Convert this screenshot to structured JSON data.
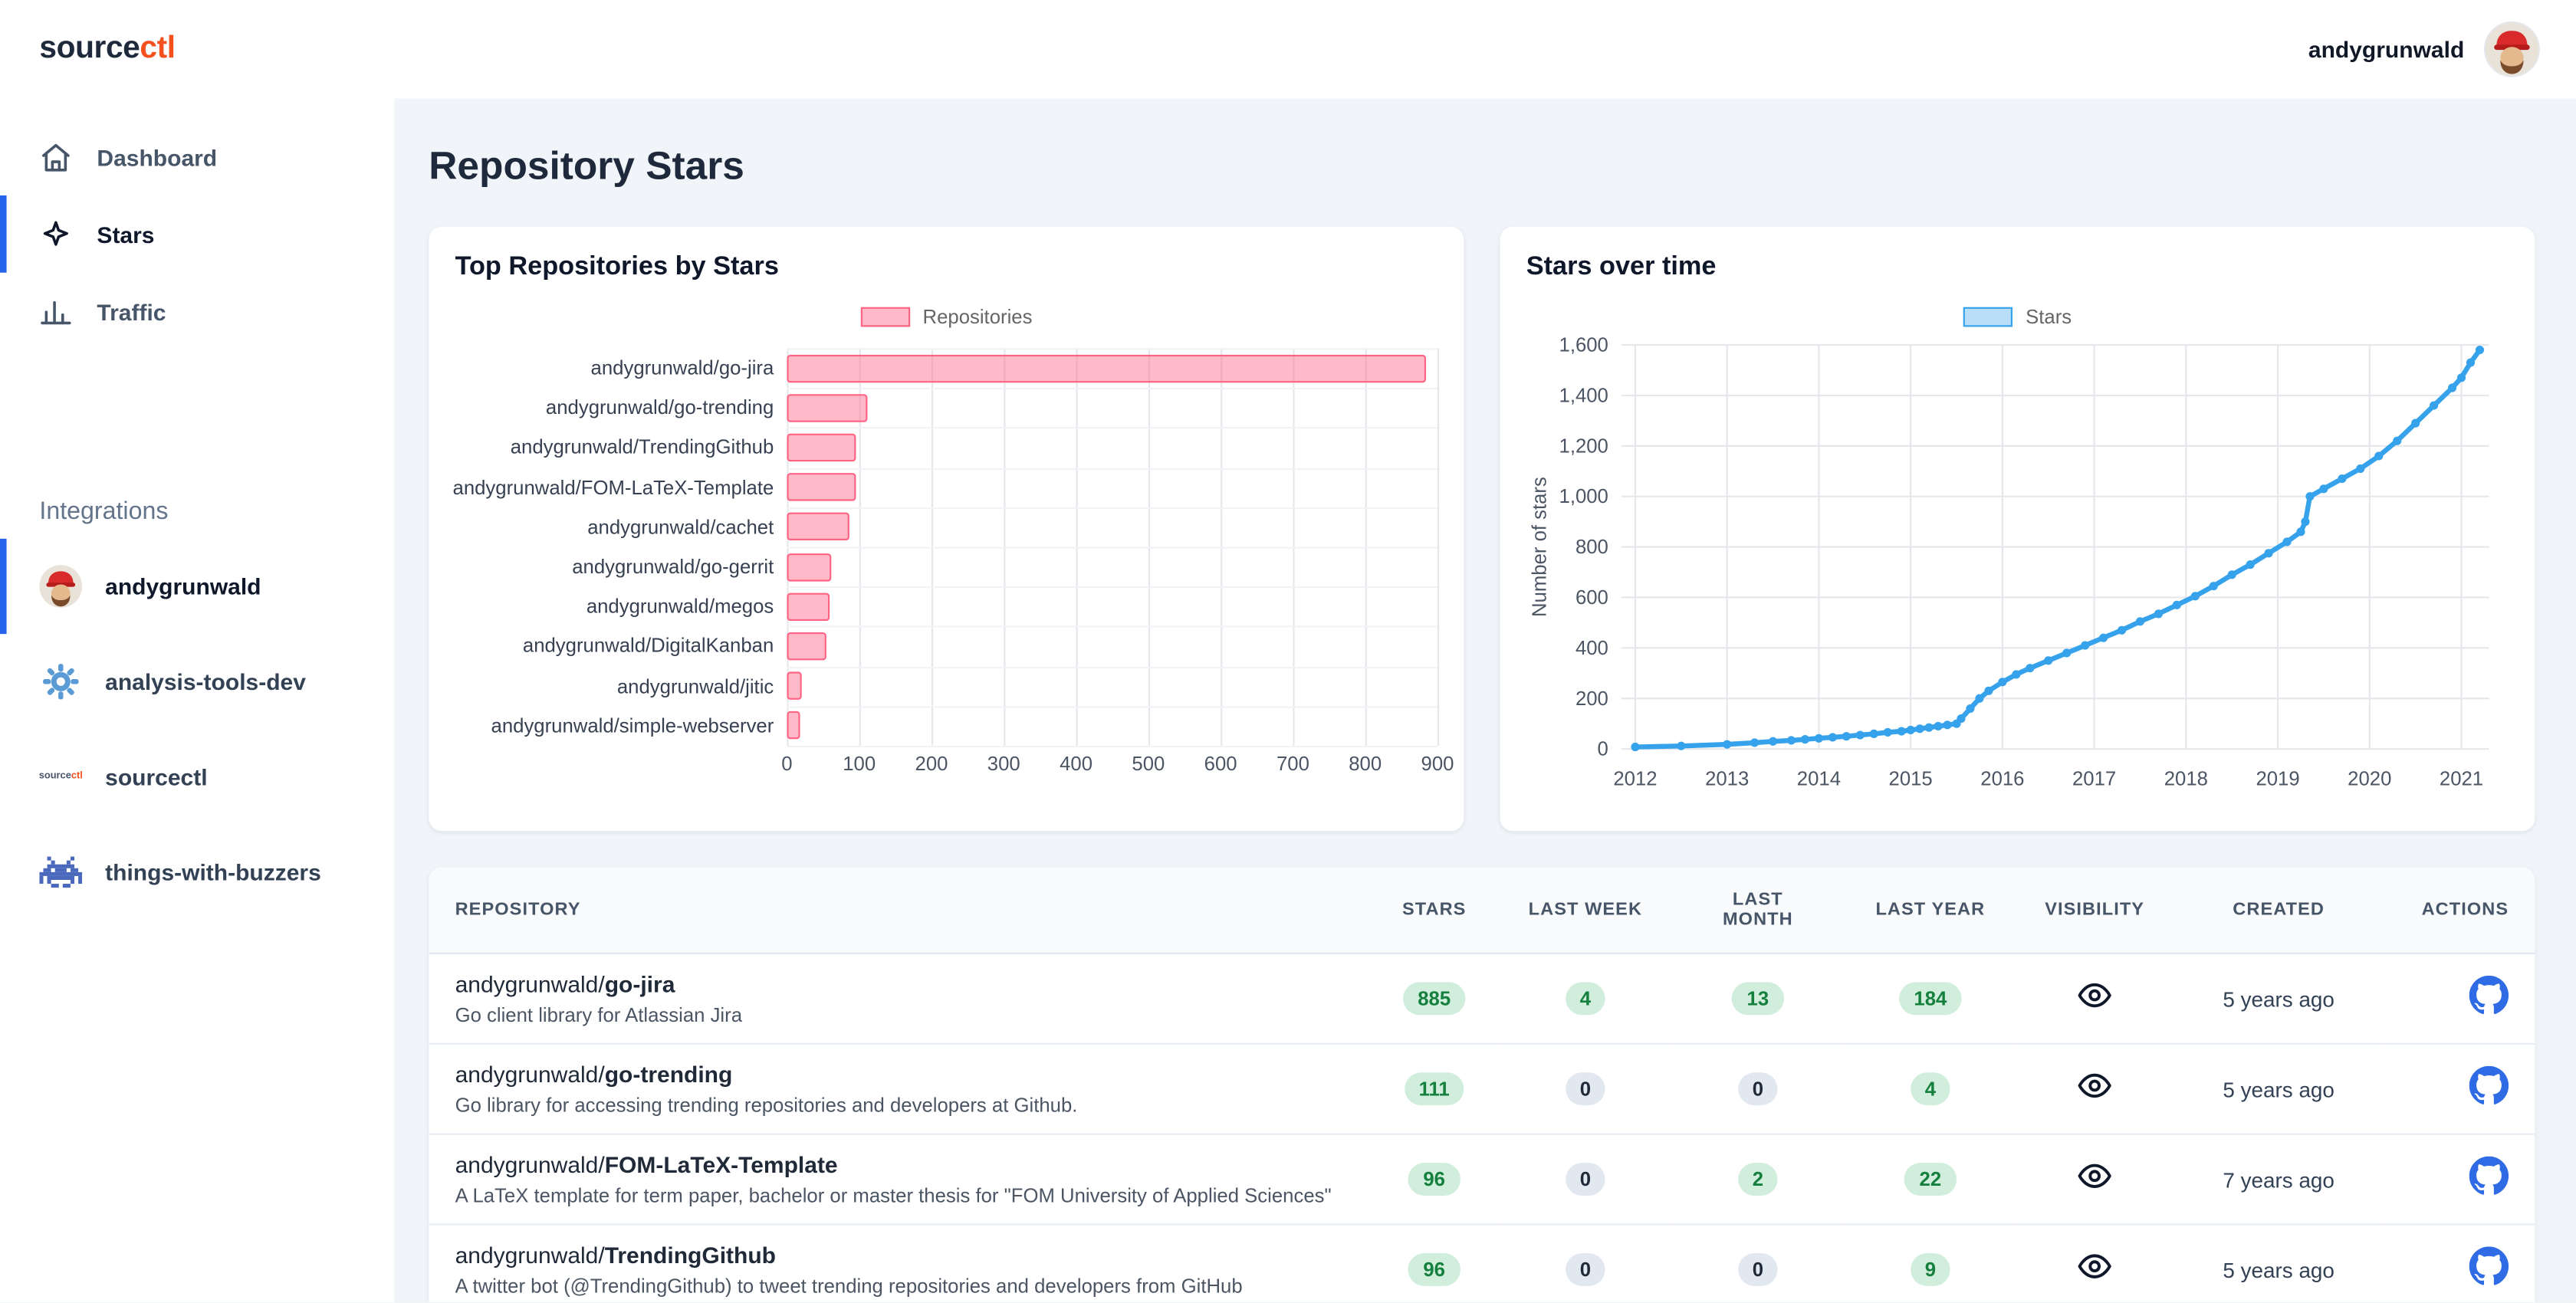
{
  "app": {
    "brand_source": "source",
    "brand_ctl": "ctl",
    "user": "andygrunwald"
  },
  "sidebar": {
    "nav": [
      {
        "label": "Dashboard"
      },
      {
        "label": "Stars"
      },
      {
        "label": "Traffic"
      }
    ],
    "integrations_header": "Integrations",
    "integrations": [
      {
        "label": "andygrunwald"
      },
      {
        "label": "analysis-tools-dev"
      },
      {
        "label": "sourcectl"
      },
      {
        "label": "things-with-buzzers"
      }
    ]
  },
  "page": {
    "title": "Repository Stars"
  },
  "colors": {
    "accent_blue": "#2563eb",
    "brand_orange": "#f4511e",
    "bar_fill": "rgba(255,99,132,0.45)",
    "bar_border": "#ff6384",
    "line_color": "#36a2eb",
    "badge_green_bg": "#d1eedd",
    "badge_green_text": "#15803d",
    "badge_gray_bg": "#e2e8f0",
    "github_icon_blue": "#2f6be4"
  },
  "chart_data": [
    {
      "type": "bar",
      "orientation": "horizontal",
      "title": "Top Repositories by Stars",
      "legend": "Repositories",
      "categories": [
        "andygrunwald/go-jira",
        "andygrunwald/go-trending",
        "andygrunwald/TrendingGithub",
        "andygrunwald/FOM-LaTeX-Template",
        "andygrunwald/cachet",
        "andygrunwald/go-gerrit",
        "andygrunwald/megos",
        "andygrunwald/DigitalKanban",
        "andygrunwald/jitic",
        "andygrunwald/simple-webserver"
      ],
      "values": [
        885,
        111,
        96,
        96,
        86,
        62,
        58,
        55,
        20,
        18
      ],
      "xticks": [
        0,
        100,
        200,
        300,
        400,
        500,
        600,
        700,
        800,
        900
      ],
      "xlim": [
        0,
        900
      ],
      "grid": true
    },
    {
      "type": "line",
      "title": "Stars over time",
      "legend": "Stars",
      "ylabel": "Number of stars",
      "ylim": [
        0,
        1600
      ],
      "xlim": [
        2011.85,
        2021.3
      ],
      "xticks": [
        2012,
        2013,
        2014,
        2015,
        2016,
        2017,
        2018,
        2019,
        2020,
        2021
      ],
      "yticks": [
        0,
        200,
        400,
        600,
        800,
        1000,
        1200,
        1400,
        1600
      ],
      "x": [
        2012.0,
        2012.5,
        2013.0,
        2013.3,
        2013.5,
        2013.7,
        2013.85,
        2014.0,
        2014.15,
        2014.3,
        2014.45,
        2014.6,
        2014.75,
        2014.9,
        2015.0,
        2015.1,
        2015.2,
        2015.3,
        2015.4,
        2015.5,
        2015.55,
        2015.65,
        2015.75,
        2015.85,
        2016.0,
        2016.15,
        2016.3,
        2016.5,
        2016.7,
        2016.9,
        2017.1,
        2017.3,
        2017.5,
        2017.7,
        2017.9,
        2018.1,
        2018.3,
        2018.5,
        2018.7,
        2018.9,
        2019.1,
        2019.25,
        2019.3,
        2019.35,
        2019.5,
        2019.7,
        2019.9,
        2020.1,
        2020.3,
        2020.5,
        2020.7,
        2020.9,
        2021.0,
        2021.1,
        2021.2
      ],
      "y": [
        8,
        12,
        18,
        25,
        30,
        34,
        38,
        42,
        46,
        50,
        55,
        60,
        66,
        70,
        75,
        80,
        85,
        90,
        95,
        100,
        120,
        160,
        200,
        230,
        265,
        295,
        320,
        350,
        380,
        410,
        440,
        470,
        505,
        535,
        570,
        605,
        645,
        690,
        730,
        775,
        820,
        860,
        900,
        1000,
        1030,
        1070,
        1110,
        1160,
        1220,
        1290,
        1360,
        1430,
        1470,
        1530,
        1580
      ],
      "grid": true
    }
  ],
  "table": {
    "headers": [
      "REPOSITORY",
      "STARS",
      "LAST WEEK",
      "LAST MONTH",
      "LAST YEAR",
      "VISIBILITY",
      "CREATED",
      "ACTIONS"
    ],
    "rows": [
      {
        "owner": "andygrunwald/",
        "name": "go-jira",
        "description": "Go client library for Atlassian Jira",
        "stars": 885,
        "last_week": 4,
        "last_month": 13,
        "last_year": 184,
        "visibility": "public",
        "created": "5 years ago"
      },
      {
        "owner": "andygrunwald/",
        "name": "go-trending",
        "description": "Go library for accessing trending repositories and developers at Github.",
        "stars": 111,
        "last_week": 0,
        "last_month": 0,
        "last_year": 4,
        "visibility": "public",
        "created": "5 years ago"
      },
      {
        "owner": "andygrunwald/",
        "name": "FOM-LaTeX-Template",
        "description": "A LaTeX template for term paper, bachelor or master thesis for \"FOM University of Applied Sciences\"",
        "stars": 96,
        "last_week": 0,
        "last_month": 2,
        "last_year": 22,
        "visibility": "public",
        "created": "7 years ago"
      },
      {
        "owner": "andygrunwald/",
        "name": "TrendingGithub",
        "description": "A twitter bot (@TrendingGithub) to tweet trending repositories and developers from GitHub",
        "stars": 96,
        "last_week": 0,
        "last_month": 0,
        "last_year": 9,
        "visibility": "public",
        "created": "5 years ago"
      }
    ]
  }
}
